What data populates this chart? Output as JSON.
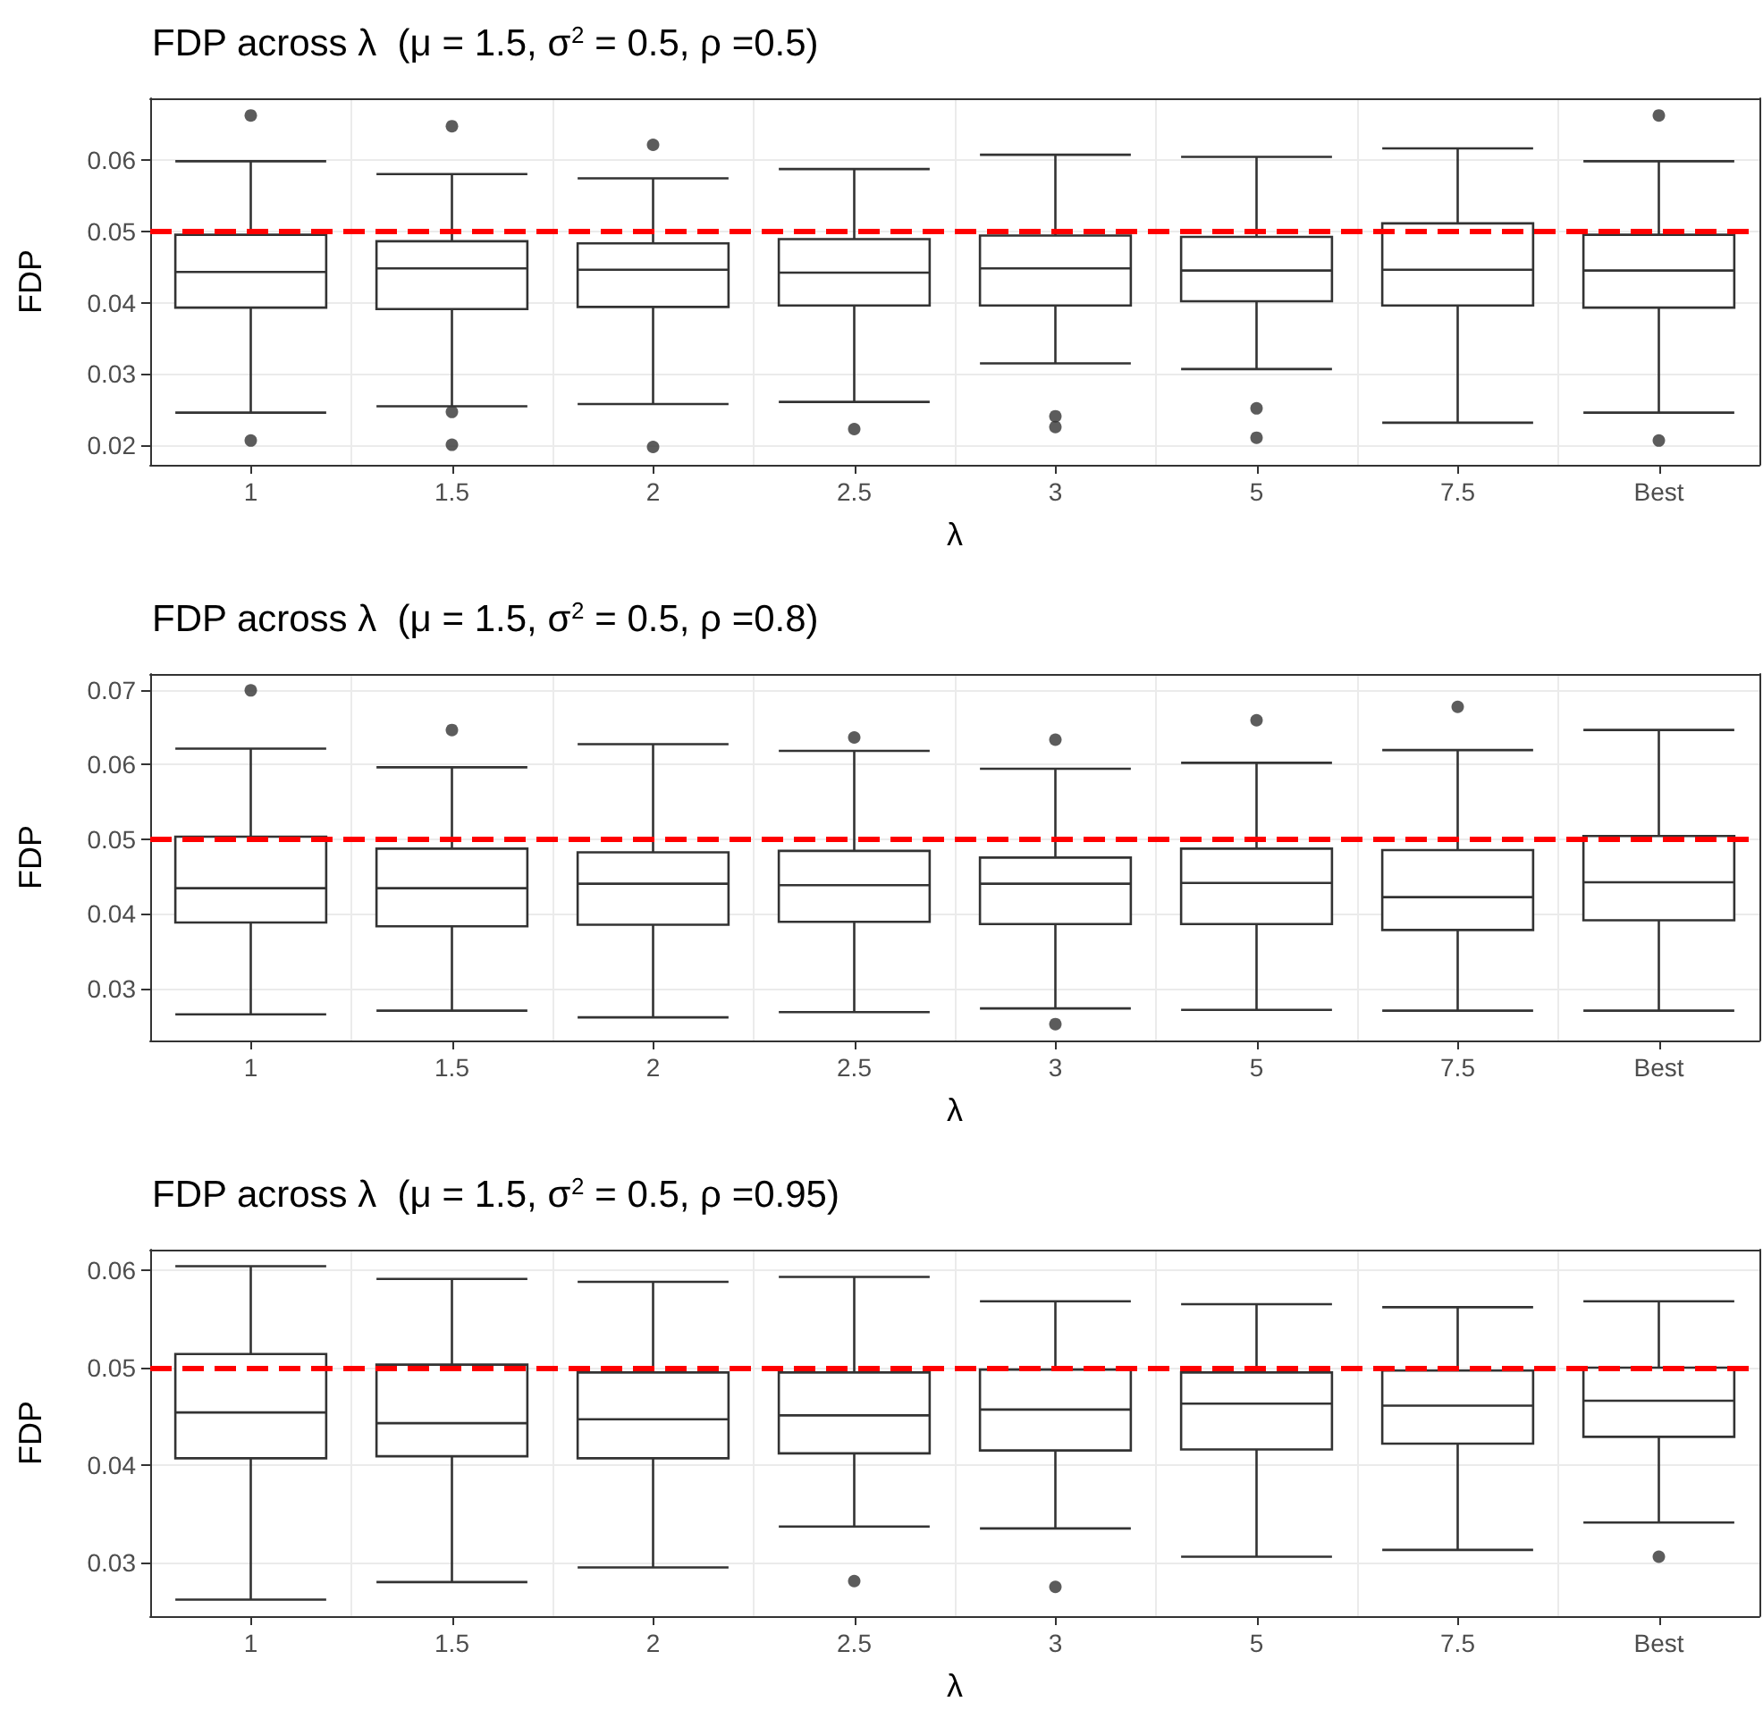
{
  "chart_data": [
    {
      "type": "box",
      "title": "FDP across λ  (μ = 1.5, σ$^{2}$ = 0.5, ρ =0.5)",
      "xlabel": "λ",
      "ylabel": "FDP",
      "categories": [
        "1",
        "1.5",
        "2",
        "2.5",
        "3",
        "5",
        "7.5",
        "Best"
      ],
      "color": "#333333",
      "boxes": [
        {
          "low": 0.0246,
          "q1": 0.0393,
          "median": 0.0443,
          "q3": 0.0495,
          "high": 0.0598,
          "outliers": [
            0.0662,
            0.0207
          ]
        },
        {
          "low": 0.0255,
          "q1": 0.0391,
          "median": 0.0448,
          "q3": 0.0486,
          "high": 0.058,
          "outliers": [
            0.0647,
            0.0247,
            0.0201
          ]
        },
        {
          "low": 0.0258,
          "q1": 0.0394,
          "median": 0.0446,
          "q3": 0.0483,
          "high": 0.0574,
          "outliers": [
            0.0621,
            0.0198
          ]
        },
        {
          "low": 0.0261,
          "q1": 0.0396,
          "median": 0.0442,
          "q3": 0.0489,
          "high": 0.0587,
          "outliers": [
            0.0223
          ]
        },
        {
          "low": 0.0315,
          "q1": 0.0396,
          "median": 0.0448,
          "q3": 0.0494,
          "high": 0.0607,
          "outliers": [
            0.0241,
            0.0226
          ]
        },
        {
          "low": 0.0307,
          "q1": 0.0402,
          "median": 0.0445,
          "q3": 0.0492,
          "high": 0.0604,
          "outliers": [
            0.0252,
            0.0211
          ]
        },
        {
          "low": 0.0232,
          "q1": 0.0396,
          "median": 0.0446,
          "q3": 0.0511,
          "high": 0.0616
        },
        {
          "low": 0.0246,
          "q1": 0.0393,
          "median": 0.0445,
          "q3": 0.0495,
          "high": 0.0598,
          "outliers": [
            0.0662,
            0.0207
          ]
        }
      ],
      "ylim": [
        0.0173,
        0.0686
      ],
      "yticks": [
        0.02,
        0.03,
        0.04,
        0.05,
        0.06
      ],
      "ref_lines": [
        {
          "axis": "y",
          "value": 0.05,
          "color": "#ff0000",
          "line_style": "dashed"
        }
      ],
      "grid": true
    },
    {
      "type": "box",
      "title": "FDP across λ  (μ = 1.5, σ$^{2}$ = 0.5, ρ =0.8)",
      "xlabel": "λ",
      "ylabel": "FDP",
      "categories": [
        "1",
        "1.5",
        "2",
        "2.5",
        "3",
        "5",
        "7.5",
        "Best"
      ],
      "color": "#333333",
      "boxes": [
        {
          "low": 0.0265,
          "q1": 0.0388,
          "median": 0.0434,
          "q3": 0.0503,
          "high": 0.0621,
          "outliers": [
            0.0699
          ]
        },
        {
          "low": 0.027,
          "q1": 0.0383,
          "median": 0.0434,
          "q3": 0.0487,
          "high": 0.0596,
          "outliers": [
            0.0646
          ]
        },
        {
          "low": 0.0261,
          "q1": 0.0385,
          "median": 0.044,
          "q3": 0.0482,
          "high": 0.0627
        },
        {
          "low": 0.0268,
          "q1": 0.0389,
          "median": 0.0438,
          "q3": 0.0484,
          "high": 0.0618,
          "outliers": [
            0.0636
          ]
        },
        {
          "low": 0.0273,
          "q1": 0.0386,
          "median": 0.044,
          "q3": 0.0475,
          "high": 0.0594,
          "outliers": [
            0.0633,
            0.0252
          ]
        },
        {
          "low": 0.0271,
          "q1": 0.0386,
          "median": 0.0441,
          "q3": 0.0487,
          "high": 0.0602,
          "outliers": [
            0.0659
          ]
        },
        {
          "low": 0.027,
          "q1": 0.0378,
          "median": 0.0422,
          "q3": 0.0485,
          "high": 0.0619,
          "outliers": [
            0.0677
          ]
        },
        {
          "low": 0.027,
          "q1": 0.0391,
          "median": 0.0442,
          "q3": 0.0504,
          "high": 0.0646
        }
      ],
      "ylim": [
        0.023,
        0.0721
      ],
      "yticks": [
        0.03,
        0.04,
        0.05,
        0.06,
        0.07
      ],
      "ref_lines": [
        {
          "axis": "y",
          "value": 0.05,
          "color": "#ff0000",
          "line_style": "dashed"
        }
      ],
      "grid": true
    },
    {
      "type": "box",
      "title": "FDP across λ  (μ = 1.5, σ$^{2}$ = 0.5, ρ =0.95)",
      "xlabel": "λ",
      "ylabel": "FDP",
      "categories": [
        "1",
        "1.5",
        "2",
        "2.5",
        "3",
        "5",
        "7.5",
        "Best"
      ],
      "color": "#333333",
      "boxes": [
        {
          "low": 0.0262,
          "q1": 0.0407,
          "median": 0.0454,
          "q3": 0.0514,
          "high": 0.0604
        },
        {
          "low": 0.028,
          "q1": 0.0409,
          "median": 0.0443,
          "q3": 0.0503,
          "high": 0.0591
        },
        {
          "low": 0.0295,
          "q1": 0.0407,
          "median": 0.0447,
          "q3": 0.0495,
          "high": 0.0588
        },
        {
          "low": 0.0337,
          "q1": 0.0412,
          "median": 0.0451,
          "q3": 0.0495,
          "high": 0.0593,
          "outliers": [
            0.0281
          ]
        },
        {
          "low": 0.0335,
          "q1": 0.0415,
          "median": 0.0457,
          "q3": 0.0498,
          "high": 0.0568,
          "outliers": [
            0.0275
          ]
        },
        {
          "low": 0.0306,
          "q1": 0.0416,
          "median": 0.0463,
          "q3": 0.0495,
          "high": 0.0565
        },
        {
          "low": 0.0313,
          "q1": 0.0422,
          "median": 0.0461,
          "q3": 0.0497,
          "high": 0.0562
        },
        {
          "low": 0.0341,
          "q1": 0.0429,
          "median": 0.0466,
          "q3": 0.05,
          "high": 0.0568,
          "outliers": [
            0.0306
          ]
        }
      ],
      "ylim": [
        0.0245,
        0.0621
      ],
      "yticks": [
        0.03,
        0.04,
        0.05,
        0.06
      ],
      "ref_lines": [
        {
          "axis": "y",
          "value": 0.05,
          "color": "#ff0000",
          "line_style": "dashed"
        }
      ],
      "grid": true
    }
  ]
}
